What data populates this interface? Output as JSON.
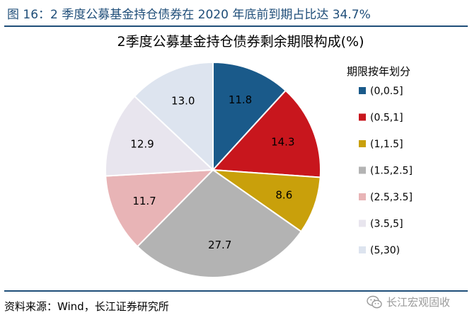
{
  "figure_title": "图 16：2 季度公募基金持仓债券在 2020 年底前到期占比达 34.7%",
  "source_note": "资料来源：Wind，长江证券研究所",
  "watermark_text": "长江宏观固收",
  "watermark_icon": "wechat-icon",
  "colors": {
    "title": "#1f4e79",
    "rule": "#1f4e79"
  },
  "chart_data": {
    "type": "pie",
    "title": "2季度公募基金持仓债券剩余期限构成(%)",
    "legend_title": "期限按年划分",
    "legend_position": "right",
    "categories": [
      "(0,0.5]",
      "(0.5,1]",
      "(1,1.5]",
      "(1.5,2.5]",
      "(2.5,3.5]",
      "(3.5,5]",
      "(5,30)"
    ],
    "values": [
      11.8,
      14.3,
      8.6,
      27.7,
      11.7,
      12.9,
      13.0
    ],
    "labels": [
      "11.8",
      "14.3",
      "8.6",
      "27.7",
      "11.7",
      "12.9",
      "13.0"
    ],
    "colors": [
      "#1a5a8a",
      "#c8161d",
      "#c9a00b",
      "#b3b3b3",
      "#e8b4b6",
      "#e8e5ee",
      "#dde4ef"
    ]
  }
}
